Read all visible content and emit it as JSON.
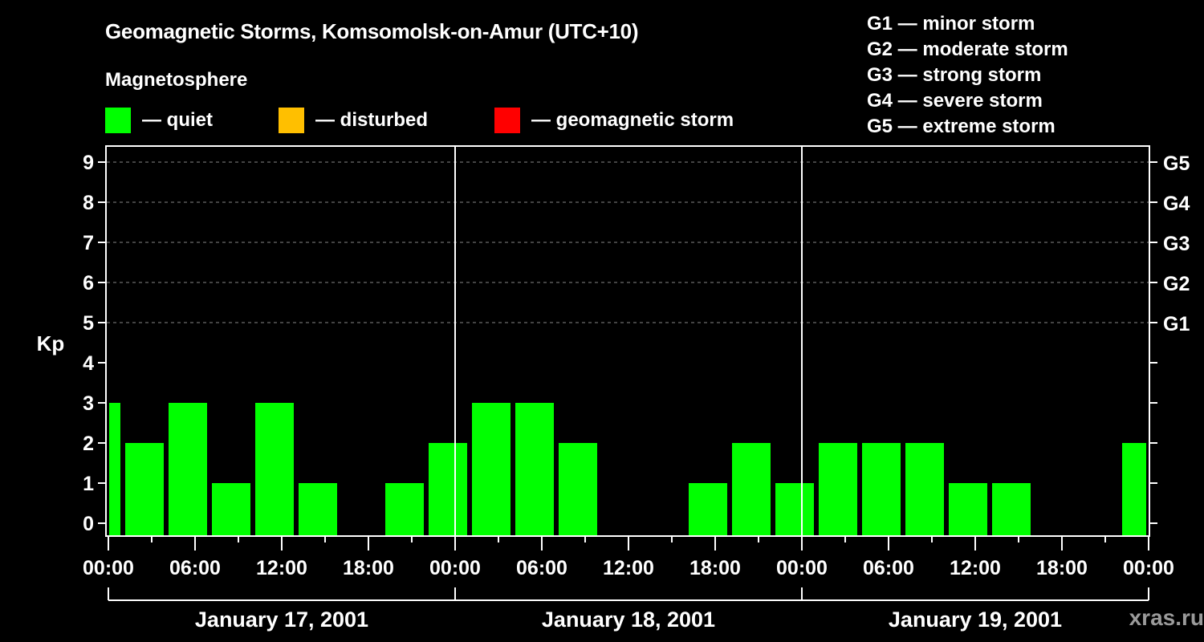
{
  "header": {
    "title": "Geomagnetic Storms, Komsomolsk-on-Amur (UTC+10)",
    "subtitle": "Magnetosphere"
  },
  "legend": {
    "items": [
      {
        "label": "— quiet",
        "color": "#00ff00"
      },
      {
        "label": "— disturbed",
        "color": "#ffbf00"
      },
      {
        "label": "— geomagnetic storm",
        "color": "#ff0000"
      }
    ]
  },
  "storm_scale": [
    "G1 — minor storm",
    "G2 — moderate storm",
    "G3 — strong storm",
    "G4 — severe storm",
    "G5 — extreme storm"
  ],
  "watermark": "xras.ru",
  "chart_data": {
    "type": "bar",
    "title": "Geomagnetic Storms, Komsomolsk-on-Amur (UTC+10)",
    "xlabel": "",
    "ylabel": "Kp",
    "ylim": [
      0,
      9
    ],
    "yticks": [
      0,
      1,
      2,
      3,
      4,
      5,
      6,
      7,
      8,
      9
    ],
    "right_axis_labels": [
      {
        "kp": 5,
        "label": "G1"
      },
      {
        "kp": 6,
        "label": "G2"
      },
      {
        "kp": 7,
        "label": "G3"
      },
      {
        "kp": 8,
        "label": "G4"
      },
      {
        "kp": 9,
        "label": "G5"
      }
    ],
    "grid": "dashed horizontal at Kp 5-9",
    "x_tick_labels": [
      "00:00",
      "06:00",
      "12:00",
      "18:00",
      "00:00",
      "06:00",
      "12:00",
      "18:00",
      "00:00",
      "06:00",
      "12:00",
      "18:00",
      "00:00"
    ],
    "day_labels": [
      "January 17, 2001",
      "January 18, 2001",
      "January 19, 2001"
    ],
    "bar_color": "#00ff00",
    "bars": [
      {
        "start_h": 0,
        "end_h": 1,
        "kp": 3
      },
      {
        "start_h": 1,
        "end_h": 4,
        "kp": 2
      },
      {
        "start_h": 4,
        "end_h": 7,
        "kp": 3
      },
      {
        "start_h": 7,
        "end_h": 10,
        "kp": 1
      },
      {
        "start_h": 10,
        "end_h": 13,
        "kp": 3
      },
      {
        "start_h": 13,
        "end_h": 16,
        "kp": 1
      },
      {
        "start_h": 16,
        "end_h": 19,
        "kp": 0
      },
      {
        "start_h": 19,
        "end_h": 22,
        "kp": 1
      },
      {
        "start_h": 22,
        "end_h": 25,
        "kp": 2
      },
      {
        "start_h": 25,
        "end_h": 28,
        "kp": 3
      },
      {
        "start_h": 28,
        "end_h": 31,
        "kp": 3
      },
      {
        "start_h": 31,
        "end_h": 34,
        "kp": 2
      },
      {
        "start_h": 34,
        "end_h": 37,
        "kp": 0
      },
      {
        "start_h": 37,
        "end_h": 40,
        "kp": 0
      },
      {
        "start_h": 40,
        "end_h": 43,
        "kp": 1
      },
      {
        "start_h": 43,
        "end_h": 46,
        "kp": 2
      },
      {
        "start_h": 46,
        "end_h": 49,
        "kp": 1
      },
      {
        "start_h": 49,
        "end_h": 52,
        "kp": 2
      },
      {
        "start_h": 52,
        "end_h": 55,
        "kp": 2
      },
      {
        "start_h": 55,
        "end_h": 58,
        "kp": 2
      },
      {
        "start_h": 58,
        "end_h": 61,
        "kp": 1
      },
      {
        "start_h": 61,
        "end_h": 64,
        "kp": 1
      },
      {
        "start_h": 64,
        "end_h": 67,
        "kp": 0
      },
      {
        "start_h": 67,
        "end_h": 70,
        "kp": 0
      },
      {
        "start_h": 70,
        "end_h": 72,
        "kp": 2
      }
    ]
  }
}
